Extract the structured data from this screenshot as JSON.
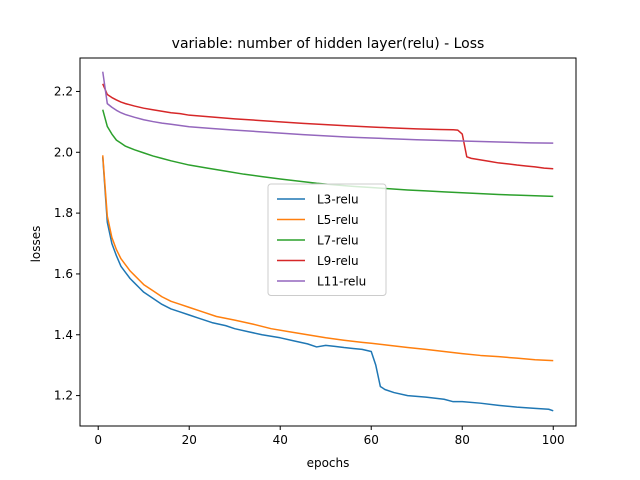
{
  "chart_data": {
    "type": "line",
    "title": "variable: number of hidden layer(relu) - Loss",
    "xlabel": "epochs",
    "ylabel": "losses",
    "xlim": [
      -4,
      105
    ],
    "ylim": [
      1.1,
      2.31
    ],
    "xticks": [
      0,
      20,
      40,
      60,
      80,
      100
    ],
    "yticks": [
      1.2,
      1.4,
      1.6,
      1.8,
      2.0,
      2.2
    ],
    "grid": false,
    "legend_position": "center",
    "series": [
      {
        "name": "L3-relu",
        "color": "#1f77b4",
        "points": [
          [
            1,
            1.985
          ],
          [
            2,
            1.77
          ],
          [
            3,
            1.7
          ],
          [
            4,
            1.66
          ],
          [
            5,
            1.625
          ],
          [
            6,
            1.605
          ],
          [
            7,
            1.585
          ],
          [
            8,
            1.57
          ],
          [
            9,
            1.555
          ],
          [
            10,
            1.54
          ],
          [
            12,
            1.52
          ],
          [
            14,
            1.5
          ],
          [
            16,
            1.485
          ],
          [
            18,
            1.475
          ],
          [
            20,
            1.465
          ],
          [
            22,
            1.455
          ],
          [
            25,
            1.44
          ],
          [
            28,
            1.43
          ],
          [
            30,
            1.42
          ],
          [
            33,
            1.41
          ],
          [
            36,
            1.4
          ],
          [
            40,
            1.39
          ],
          [
            43,
            1.38
          ],
          [
            46,
            1.37
          ],
          [
            48,
            1.36
          ],
          [
            50,
            1.365
          ],
          [
            52,
            1.362
          ],
          [
            54,
            1.358
          ],
          [
            56,
            1.355
          ],
          [
            58,
            1.352
          ],
          [
            60,
            1.345
          ],
          [
            61,
            1.3
          ],
          [
            62,
            1.23
          ],
          [
            63,
            1.22
          ],
          [
            65,
            1.21
          ],
          [
            68,
            1.2
          ],
          [
            72,
            1.195
          ],
          [
            76,
            1.188
          ],
          [
            78,
            1.18
          ],
          [
            80,
            1.18
          ],
          [
            84,
            1.175
          ],
          [
            88,
            1.168
          ],
          [
            92,
            1.162
          ],
          [
            96,
            1.158
          ],
          [
            99,
            1.155
          ],
          [
            100,
            1.15
          ]
        ]
      },
      {
        "name": "L5-relu",
        "color": "#ff7f0e",
        "points": [
          [
            1,
            1.99
          ],
          [
            2,
            1.79
          ],
          [
            3,
            1.72
          ],
          [
            4,
            1.68
          ],
          [
            5,
            1.65
          ],
          [
            6,
            1.63
          ],
          [
            7,
            1.61
          ],
          [
            8,
            1.595
          ],
          [
            9,
            1.58
          ],
          [
            10,
            1.565
          ],
          [
            12,
            1.545
          ],
          [
            14,
            1.525
          ],
          [
            16,
            1.51
          ],
          [
            18,
            1.5
          ],
          [
            20,
            1.49
          ],
          [
            23,
            1.475
          ],
          [
            26,
            1.46
          ],
          [
            30,
            1.448
          ],
          [
            34,
            1.435
          ],
          [
            38,
            1.42
          ],
          [
            42,
            1.41
          ],
          [
            46,
            1.4
          ],
          [
            50,
            1.39
          ],
          [
            54,
            1.382
          ],
          [
            58,
            1.375
          ],
          [
            60,
            1.372
          ],
          [
            64,
            1.365
          ],
          [
            68,
            1.358
          ],
          [
            72,
            1.352
          ],
          [
            76,
            1.345
          ],
          [
            80,
            1.338
          ],
          [
            84,
            1.332
          ],
          [
            88,
            1.328
          ],
          [
            92,
            1.323
          ],
          [
            96,
            1.318
          ],
          [
            100,
            1.315
          ]
        ]
      },
      {
        "name": "L7-relu",
        "color": "#2ca02c",
        "points": [
          [
            1,
            2.14
          ],
          [
            2,
            2.085
          ],
          [
            3,
            2.06
          ],
          [
            4,
            2.04
          ],
          [
            5,
            2.03
          ],
          [
            6,
            2.02
          ],
          [
            8,
            2.008
          ],
          [
            10,
            1.998
          ],
          [
            12,
            1.988
          ],
          [
            14,
            1.98
          ],
          [
            16,
            1.972
          ],
          [
            18,
            1.965
          ],
          [
            20,
            1.958
          ],
          [
            24,
            1.948
          ],
          [
            28,
            1.938
          ],
          [
            32,
            1.928
          ],
          [
            36,
            1.92
          ],
          [
            40,
            1.912
          ],
          [
            44,
            1.905
          ],
          [
            48,
            1.898
          ],
          [
            52,
            1.893
          ],
          [
            56,
            1.888
          ],
          [
            60,
            1.884
          ],
          [
            64,
            1.88
          ],
          [
            68,
            1.876
          ],
          [
            72,
            1.873
          ],
          [
            76,
            1.87
          ],
          [
            80,
            1.867
          ],
          [
            84,
            1.864
          ],
          [
            88,
            1.861
          ],
          [
            92,
            1.859
          ],
          [
            96,
            1.857
          ],
          [
            100,
            1.855
          ]
        ]
      },
      {
        "name": "L9-relu",
        "color": "#d62728",
        "points": [
          [
            1,
            2.225
          ],
          [
            2,
            2.19
          ],
          [
            3,
            2.18
          ],
          [
            4,
            2.172
          ],
          [
            5,
            2.165
          ],
          [
            6,
            2.16
          ],
          [
            8,
            2.152
          ],
          [
            10,
            2.145
          ],
          [
            12,
            2.14
          ],
          [
            14,
            2.135
          ],
          [
            16,
            2.13
          ],
          [
            18,
            2.127
          ],
          [
            20,
            2.122
          ],
          [
            25,
            2.116
          ],
          [
            30,
            2.11
          ],
          [
            35,
            2.105
          ],
          [
            40,
            2.1
          ],
          [
            45,
            2.095
          ],
          [
            50,
            2.091
          ],
          [
            55,
            2.087
          ],
          [
            60,
            2.083
          ],
          [
            65,
            2.08
          ],
          [
            70,
            2.077
          ],
          [
            75,
            2.075
          ],
          [
            78,
            2.074
          ],
          [
            79,
            2.073
          ],
          [
            80,
            2.06
          ],
          [
            81,
            1.985
          ],
          [
            82,
            1.98
          ],
          [
            84,
            1.975
          ],
          [
            86,
            1.97
          ],
          [
            88,
            1.965
          ],
          [
            90,
            1.962
          ],
          [
            92,
            1.958
          ],
          [
            94,
            1.955
          ],
          [
            96,
            1.952
          ],
          [
            98,
            1.948
          ],
          [
            100,
            1.946
          ]
        ]
      },
      {
        "name": "L11-relu",
        "color": "#9467bd",
        "points": [
          [
            1,
            2.265
          ],
          [
            2,
            2.16
          ],
          [
            3,
            2.148
          ],
          [
            4,
            2.138
          ],
          [
            5,
            2.13
          ],
          [
            6,
            2.124
          ],
          [
            8,
            2.115
          ],
          [
            10,
            2.107
          ],
          [
            12,
            2.101
          ],
          [
            14,
            2.096
          ],
          [
            16,
            2.092
          ],
          [
            18,
            2.088
          ],
          [
            20,
            2.084
          ],
          [
            25,
            2.078
          ],
          [
            30,
            2.073
          ],
          [
            35,
            2.068
          ],
          [
            40,
            2.063
          ],
          [
            45,
            2.058
          ],
          [
            50,
            2.054
          ],
          [
            55,
            2.05
          ],
          [
            60,
            2.047
          ],
          [
            65,
            2.044
          ],
          [
            70,
            2.041
          ],
          [
            75,
            2.039
          ],
          [
            80,
            2.037
          ],
          [
            85,
            2.035
          ],
          [
            90,
            2.033
          ],
          [
            95,
            2.031
          ],
          [
            100,
            2.03
          ]
        ]
      }
    ]
  }
}
